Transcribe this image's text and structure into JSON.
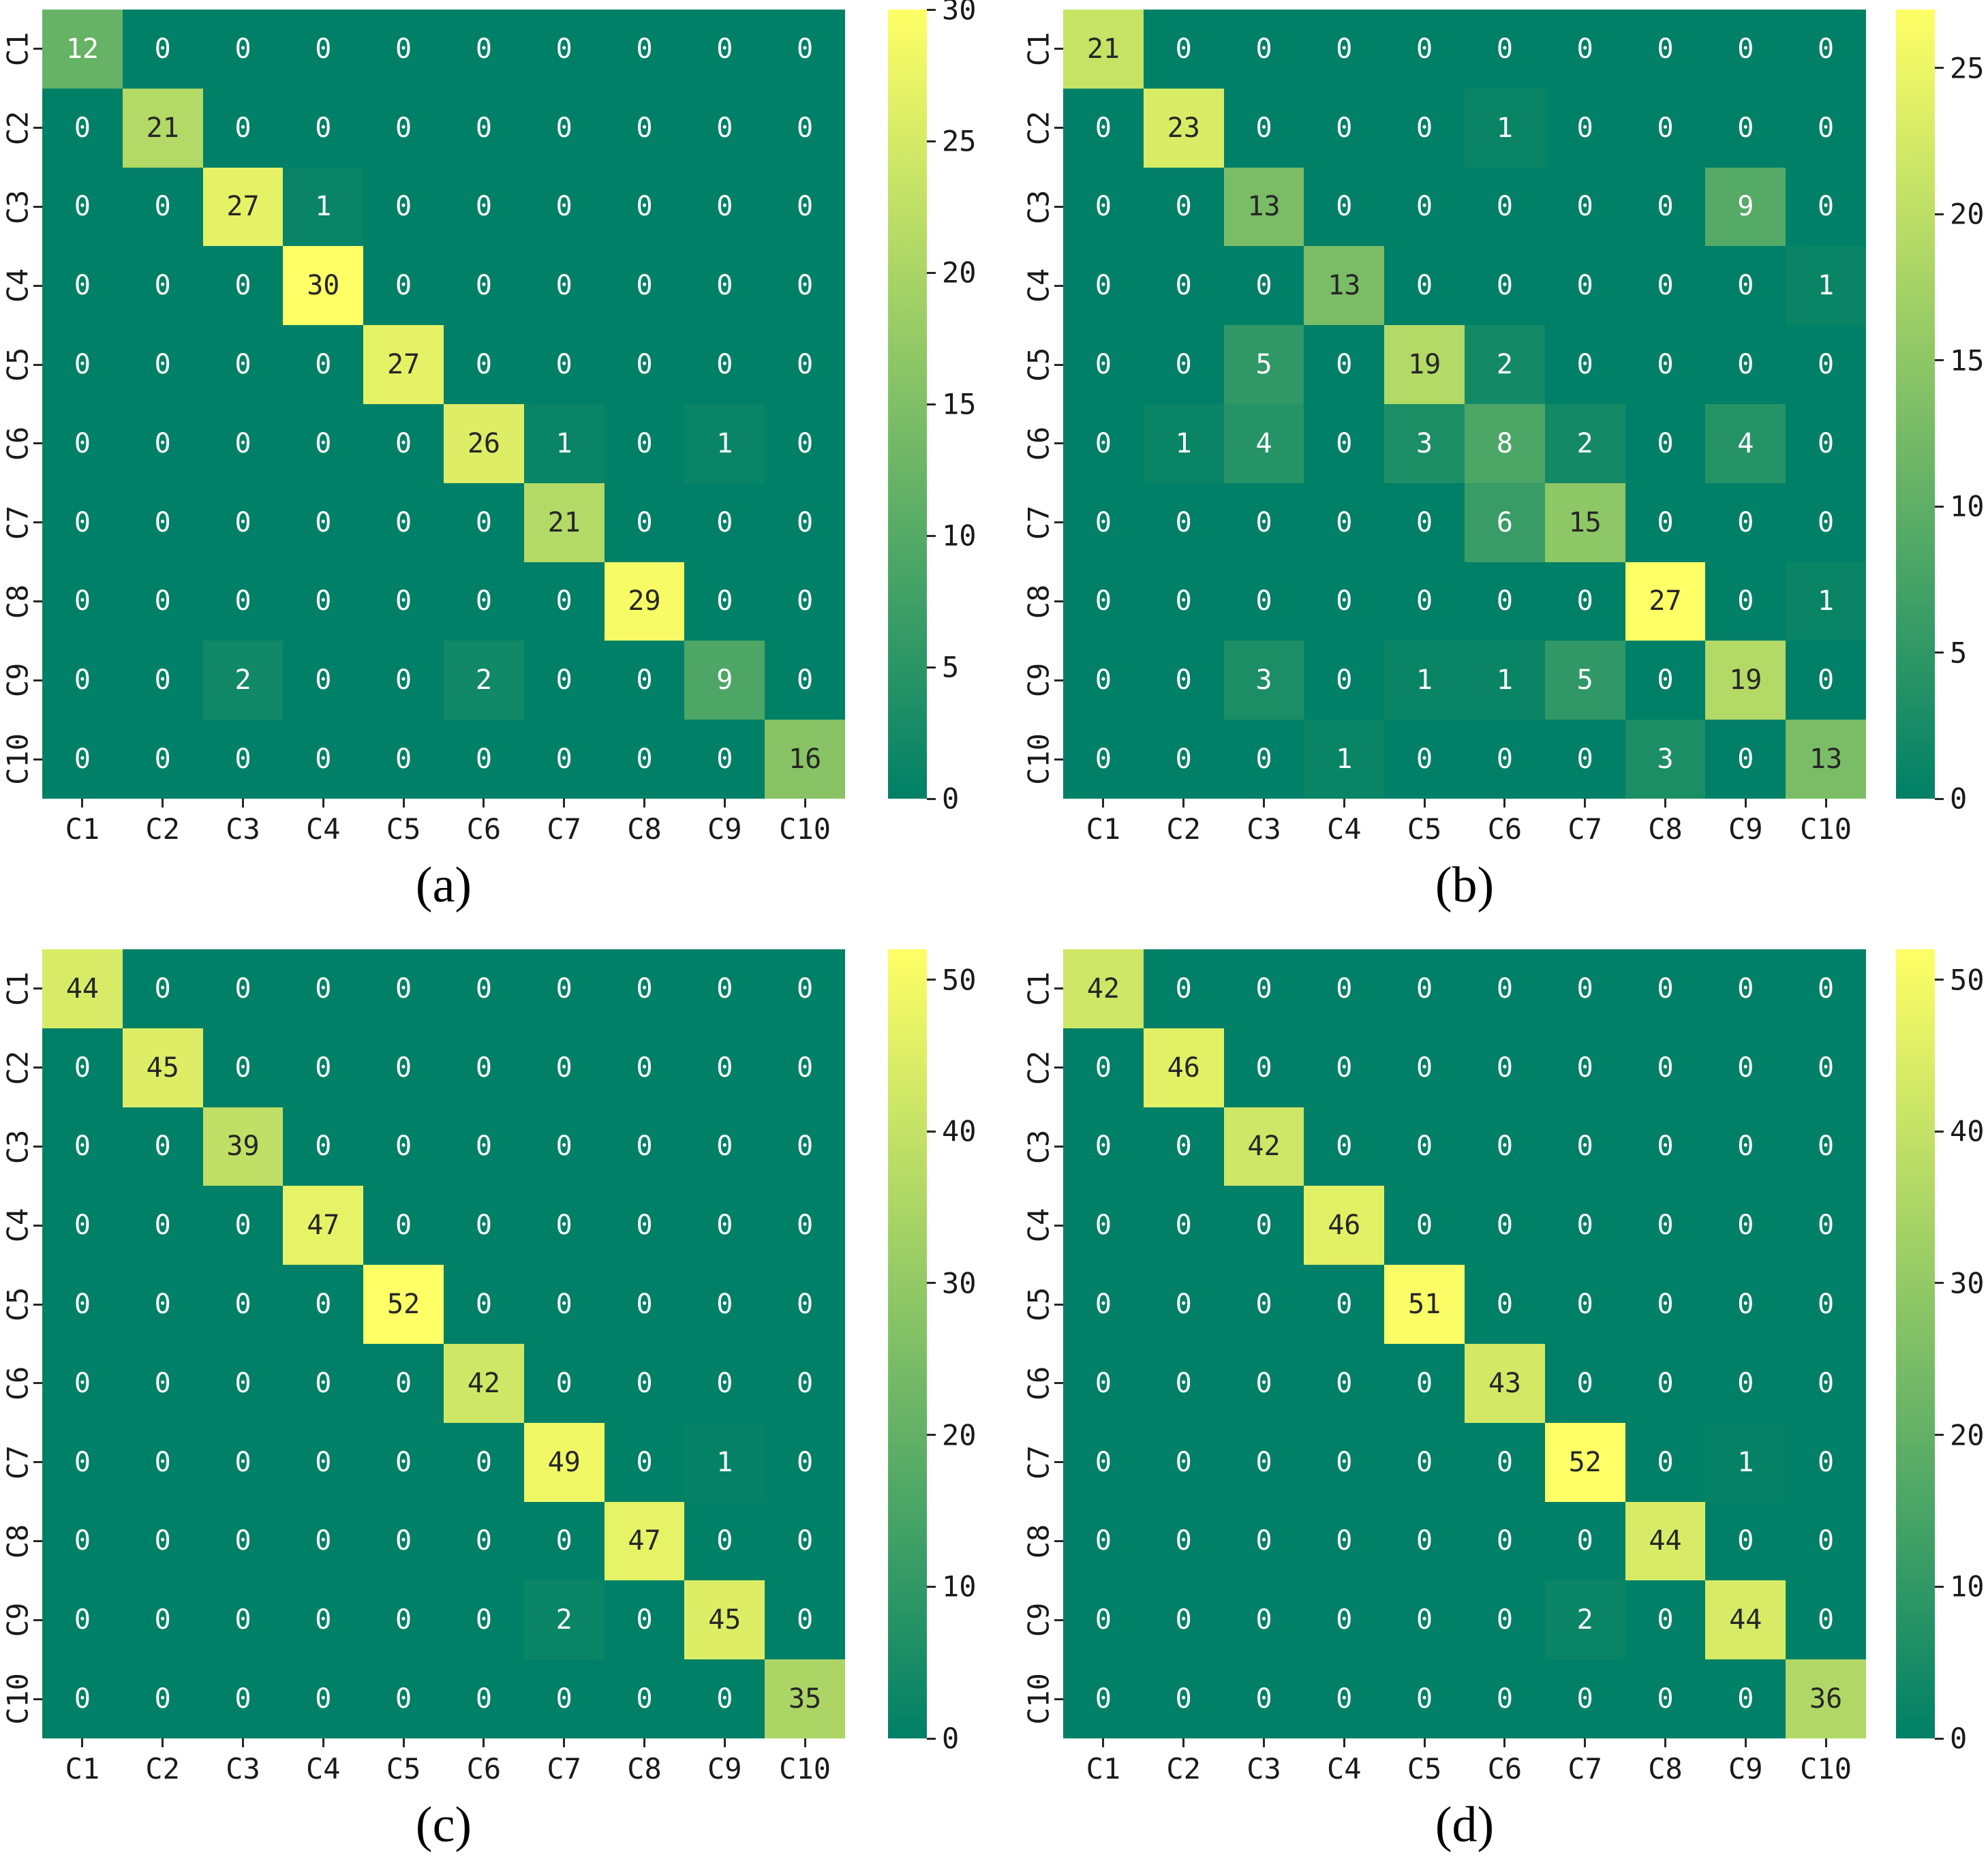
{
  "figure": {
    "background": "#ffffff",
    "colormap": {
      "name": "summer",
      "low": "#008066",
      "high": "#ffff66"
    },
    "annotation_dark_text": "#262626",
    "annotation_light_text": "#ffffff",
    "tick_color": "#262626"
  },
  "chart_data": [
    {
      "type": "heatmap",
      "caption": "(a)",
      "x_categories": [
        "C1",
        "C2",
        "C3",
        "C4",
        "C5",
        "C6",
        "C7",
        "C8",
        "C9",
        "C10"
      ],
      "y_categories": [
        "C1",
        "C2",
        "C3",
        "C4",
        "C5",
        "C6",
        "C7",
        "C8",
        "C9",
        "C10"
      ],
      "vmin": 0,
      "vmax": 30,
      "colorbar_ticks": [
        0,
        5,
        10,
        15,
        20,
        25,
        30
      ],
      "legend_position": "right",
      "matrix": [
        [
          12,
          0,
          0,
          0,
          0,
          0,
          0,
          0,
          0,
          0
        ],
        [
          0,
          21,
          0,
          0,
          0,
          0,
          0,
          0,
          0,
          0
        ],
        [
          0,
          0,
          27,
          1,
          0,
          0,
          0,
          0,
          0,
          0
        ],
        [
          0,
          0,
          0,
          30,
          0,
          0,
          0,
          0,
          0,
          0
        ],
        [
          0,
          0,
          0,
          0,
          27,
          0,
          0,
          0,
          0,
          0
        ],
        [
          0,
          0,
          0,
          0,
          0,
          26,
          1,
          0,
          1,
          0
        ],
        [
          0,
          0,
          0,
          0,
          0,
          0,
          21,
          0,
          0,
          0
        ],
        [
          0,
          0,
          0,
          0,
          0,
          0,
          0,
          29,
          0,
          0
        ],
        [
          0,
          0,
          2,
          0,
          0,
          2,
          0,
          0,
          9,
          0
        ],
        [
          0,
          0,
          0,
          0,
          0,
          0,
          0,
          0,
          0,
          16
        ]
      ]
    },
    {
      "type": "heatmap",
      "caption": "(b)",
      "x_categories": [
        "C1",
        "C2",
        "C3",
        "C4",
        "C5",
        "C6",
        "C7",
        "C8",
        "C9",
        "C10"
      ],
      "y_categories": [
        "C1",
        "C2",
        "C3",
        "C4",
        "C5",
        "C6",
        "C7",
        "C8",
        "C9",
        "C10"
      ],
      "vmin": 0,
      "vmax": 27,
      "colorbar_ticks": [
        0,
        5,
        10,
        15,
        20,
        25
      ],
      "legend_position": "right",
      "matrix": [
        [
          21,
          0,
          0,
          0,
          0,
          0,
          0,
          0,
          0,
          0
        ],
        [
          0,
          23,
          0,
          0,
          0,
          1,
          0,
          0,
          0,
          0
        ],
        [
          0,
          0,
          13,
          0,
          0,
          0,
          0,
          0,
          9,
          0
        ],
        [
          0,
          0,
          0,
          13,
          0,
          0,
          0,
          0,
          0,
          1
        ],
        [
          0,
          0,
          5,
          0,
          19,
          2,
          0,
          0,
          0,
          0
        ],
        [
          0,
          1,
          4,
          0,
          3,
          8,
          2,
          0,
          4,
          0
        ],
        [
          0,
          0,
          0,
          0,
          0,
          6,
          15,
          0,
          0,
          0
        ],
        [
          0,
          0,
          0,
          0,
          0,
          0,
          0,
          27,
          0,
          1
        ],
        [
          0,
          0,
          3,
          0,
          1,
          1,
          5,
          0,
          19,
          0
        ],
        [
          0,
          0,
          0,
          1,
          0,
          0,
          0,
          3,
          0,
          13
        ]
      ]
    },
    {
      "type": "heatmap",
      "caption": "(c)",
      "x_categories": [
        "C1",
        "C2",
        "C3",
        "C4",
        "C5",
        "C6",
        "C7",
        "C8",
        "C9",
        "C10"
      ],
      "y_categories": [
        "C1",
        "C2",
        "C3",
        "C4",
        "C5",
        "C6",
        "C7",
        "C8",
        "C9",
        "C10"
      ],
      "vmin": 0,
      "vmax": 52,
      "colorbar_ticks": [
        0,
        10,
        20,
        30,
        40,
        50
      ],
      "legend_position": "right",
      "matrix": [
        [
          44,
          0,
          0,
          0,
          0,
          0,
          0,
          0,
          0,
          0
        ],
        [
          0,
          45,
          0,
          0,
          0,
          0,
          0,
          0,
          0,
          0
        ],
        [
          0,
          0,
          39,
          0,
          0,
          0,
          0,
          0,
          0,
          0
        ],
        [
          0,
          0,
          0,
          47,
          0,
          0,
          0,
          0,
          0,
          0
        ],
        [
          0,
          0,
          0,
          0,
          52,
          0,
          0,
          0,
          0,
          0
        ],
        [
          0,
          0,
          0,
          0,
          0,
          42,
          0,
          0,
          0,
          0
        ],
        [
          0,
          0,
          0,
          0,
          0,
          0,
          49,
          0,
          1,
          0
        ],
        [
          0,
          0,
          0,
          0,
          0,
          0,
          0,
          47,
          0,
          0
        ],
        [
          0,
          0,
          0,
          0,
          0,
          0,
          2,
          0,
          45,
          0
        ],
        [
          0,
          0,
          0,
          0,
          0,
          0,
          0,
          0,
          0,
          35
        ]
      ]
    },
    {
      "type": "heatmap",
      "caption": "(d)",
      "x_categories": [
        "C1",
        "C2",
        "C3",
        "C4",
        "C5",
        "C6",
        "C7",
        "C8",
        "C9",
        "C10"
      ],
      "y_categories": [
        "C1",
        "C2",
        "C3",
        "C4",
        "C5",
        "C6",
        "C7",
        "C8",
        "C9",
        "C10"
      ],
      "vmin": 0,
      "vmax": 52,
      "colorbar_ticks": [
        0,
        10,
        20,
        30,
        40,
        50
      ],
      "legend_position": "right",
      "matrix": [
        [
          42,
          0,
          0,
          0,
          0,
          0,
          0,
          0,
          0,
          0
        ],
        [
          0,
          46,
          0,
          0,
          0,
          0,
          0,
          0,
          0,
          0
        ],
        [
          0,
          0,
          42,
          0,
          0,
          0,
          0,
          0,
          0,
          0
        ],
        [
          0,
          0,
          0,
          46,
          0,
          0,
          0,
          0,
          0,
          0
        ],
        [
          0,
          0,
          0,
          0,
          51,
          0,
          0,
          0,
          0,
          0
        ],
        [
          0,
          0,
          0,
          0,
          0,
          43,
          0,
          0,
          0,
          0
        ],
        [
          0,
          0,
          0,
          0,
          0,
          0,
          52,
          0,
          1,
          0
        ],
        [
          0,
          0,
          0,
          0,
          0,
          0,
          0,
          44,
          0,
          0
        ],
        [
          0,
          0,
          0,
          0,
          0,
          0,
          2,
          0,
          44,
          0
        ],
        [
          0,
          0,
          0,
          0,
          0,
          0,
          0,
          0,
          0,
          36
        ]
      ]
    }
  ]
}
